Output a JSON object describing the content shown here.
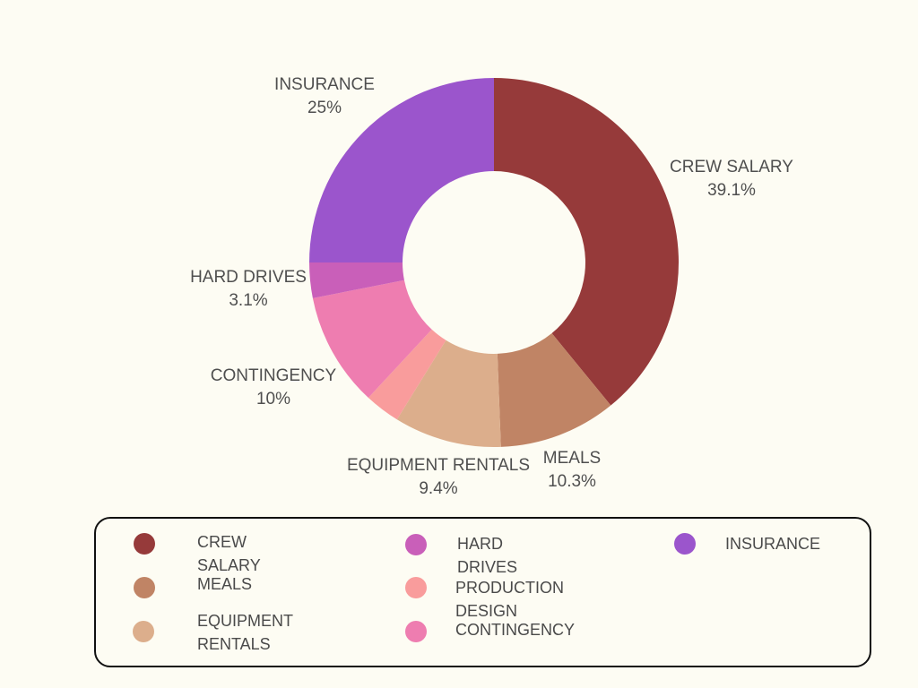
{
  "chart_data": {
    "type": "pie",
    "style": "donut",
    "title": "",
    "slices": [
      {
        "label": "CREW SALARY",
        "value": 39.1,
        "display": "39.1%",
        "color": "#963a3a"
      },
      {
        "label": "MEALS",
        "value": 10.3,
        "display": "10.3%",
        "color": "#c08465"
      },
      {
        "label": "EQUIPMENT RENTALS",
        "value": 9.4,
        "display": "9.4%",
        "color": "#dcae8c"
      },
      {
        "label": "PRODUCTION DESIGN",
        "value": 3.1,
        "display": "",
        "color": "#f99c9c"
      },
      {
        "label": "CONTINGENCY",
        "value": 10,
        "display": "10%",
        "color": "#ee7db0"
      },
      {
        "label": "HARD DRIVES",
        "value": 3.1,
        "display": "3.1%",
        "color": "#c95fb9"
      },
      {
        "label": "INSURANCE",
        "value": 25,
        "display": "25%",
        "color": "#9b55cc"
      }
    ],
    "legend": {
      "placement": "bottom",
      "items": [
        {
          "label": "CREW SALARY",
          "color": "#963a3a"
        },
        {
          "label": "HARD DRIVES",
          "color": "#c95fb9"
        },
        {
          "label": "INSURANCE",
          "color": "#9b55cc"
        },
        {
          "label": "MEALS",
          "color": "#c08465"
        },
        {
          "label": "PRODUCTION DESIGN",
          "color": "#f99c9c"
        },
        {
          "label": "EQUIPMENT RENTALS",
          "color": "#dcae8c"
        },
        {
          "label": "CONTINGENCY",
          "color": "#ee7db0"
        }
      ]
    }
  }
}
